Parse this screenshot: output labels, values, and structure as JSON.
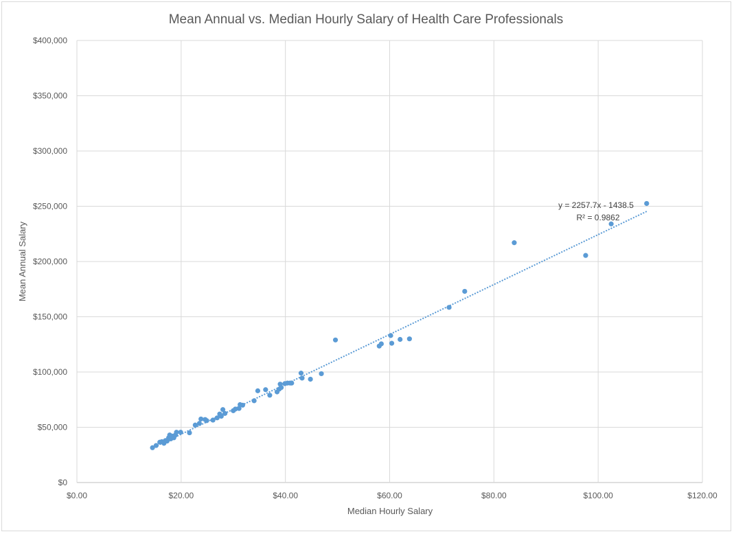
{
  "chart_data": {
    "type": "scatter",
    "title": "Mean Annual vs. Median Hourly Salary of Health Care Professionals",
    "xlabel": "Median Hourly Salary",
    "ylabel": "Mean Annual Salary",
    "xlim": [
      0,
      120
    ],
    "ylim": [
      0,
      400000
    ],
    "x_ticks": [
      0,
      20,
      40,
      60,
      80,
      100,
      120
    ],
    "y_ticks": [
      0,
      50000,
      100000,
      150000,
      200000,
      250000,
      300000,
      350000,
      400000
    ],
    "x_tick_labels": [
      "$0.00",
      "$20.00",
      "$40.00",
      "$60.00",
      "$80.00",
      "$100.00",
      "$120.00"
    ],
    "y_tick_labels": [
      "$0",
      "$50,000",
      "$100,000",
      "$150,000",
      "$200,000",
      "$250,000",
      "$300,000",
      "$350,000",
      "$400,000"
    ],
    "grid": true,
    "legend": "none",
    "marker_color": "#5b9bd5",
    "trendline": {
      "type": "linear",
      "slope": 2257.7,
      "intercept": -1438.5,
      "x_range": [
        14.5,
        109.5
      ],
      "style": "dotted",
      "color": "#5b9bd5",
      "equation_label": "y = 2257.7x - 1438.5",
      "r2_label": "R² = 0.9862"
    },
    "points": [
      [
        14.5,
        31500
      ],
      [
        15.2,
        33500
      ],
      [
        15.9,
        36500
      ],
      [
        16.3,
        37000
      ],
      [
        16.7,
        35500
      ],
      [
        17.0,
        38000
      ],
      [
        17.3,
        37500
      ],
      [
        17.6,
        40500
      ],
      [
        17.8,
        43000
      ],
      [
        18.0,
        39500
      ],
      [
        18.3,
        42000
      ],
      [
        18.6,
        40500
      ],
      [
        18.9,
        43000
      ],
      [
        19.1,
        45500
      ],
      [
        19.9,
        45500
      ],
      [
        21.6,
        45000
      ],
      [
        22.7,
        52000
      ],
      [
        23.5,
        53500
      ],
      [
        23.8,
        57500
      ],
      [
        24.6,
        57000
      ],
      [
        24.9,
        56000
      ],
      [
        26.1,
        56500
      ],
      [
        26.9,
        58500
      ],
      [
        27.4,
        62000
      ],
      [
        27.7,
        60000
      ],
      [
        28.0,
        66000
      ],
      [
        28.4,
        62500
      ],
      [
        30.0,
        65000
      ],
      [
        30.4,
        66500
      ],
      [
        31.1,
        67000
      ],
      [
        31.3,
        70500
      ],
      [
        31.8,
        70000
      ],
      [
        34.0,
        74000
      ],
      [
        34.7,
        83000
      ],
      [
        36.2,
        84000
      ],
      [
        37.0,
        79000
      ],
      [
        38.4,
        82000
      ],
      [
        38.8,
        84500
      ],
      [
        39.0,
        89000
      ],
      [
        39.2,
        86000
      ],
      [
        39.9,
        89500
      ],
      [
        40.4,
        90000
      ],
      [
        40.9,
        90000
      ],
      [
        41.2,
        90000
      ],
      [
        43.0,
        99000
      ],
      [
        43.2,
        94500
      ],
      [
        44.8,
        93500
      ],
      [
        46.9,
        98500
      ],
      [
        49.6,
        129000
      ],
      [
        58.0,
        123500
      ],
      [
        58.4,
        125500
      ],
      [
        60.2,
        133000
      ],
      [
        60.4,
        126000
      ],
      [
        62.0,
        129500
      ],
      [
        63.8,
        130000
      ],
      [
        71.4,
        158500
      ],
      [
        74.4,
        173000
      ],
      [
        83.9,
        217000
      ],
      [
        97.6,
        205500
      ],
      [
        102.5,
        234000
      ],
      [
        109.3,
        252500
      ]
    ]
  }
}
